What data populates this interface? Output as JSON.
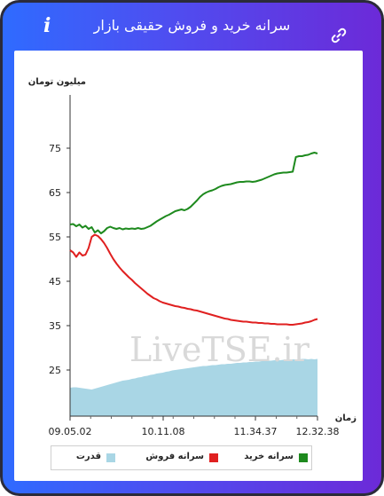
{
  "header": {
    "title": "سرانه خرید و فروش حقیقی بازار"
  },
  "chart_data": {
    "type": "line",
    "ylabel": "میلیون تومان",
    "xlabel": "زمان",
    "watermark": "LiveTSE.ir",
    "yticks": [
      25,
      35,
      45,
      55,
      65,
      75
    ],
    "ylim": [
      15,
      76
    ],
    "xticks": [
      "09.05.02",
      "10.11.08",
      "11.34.37",
      "12.32.38"
    ],
    "series": [
      {
        "name": "سرانه خرید",
        "color": "#1e8a1e",
        "values": [
          57.8,
          57.9,
          57.4,
          57.8,
          57.1,
          57.5,
          56.8,
          57.2,
          56.0,
          56.5,
          55.8,
          56.3,
          57.0,
          57.3,
          57.0,
          56.8,
          57.0,
          56.7,
          56.9,
          56.8,
          56.9,
          56.8,
          57.0,
          56.8,
          56.9,
          57.2,
          57.5,
          58.0,
          58.5,
          58.9,
          59.3,
          59.7,
          60.0,
          60.4,
          60.8,
          61.0,
          61.2,
          61.0,
          61.3,
          61.8,
          62.5,
          63.2,
          64.0,
          64.6,
          65.0,
          65.3,
          65.5,
          65.8,
          66.2,
          66.5,
          66.7,
          66.8,
          66.9,
          67.1,
          67.3,
          67.4,
          67.4,
          67.5,
          67.5,
          67.4,
          67.5,
          67.7,
          67.9,
          68.2,
          68.5,
          68.8,
          69.1,
          69.3,
          69.4,
          69.5,
          69.5,
          69.6,
          69.7,
          73.0,
          73.2,
          73.2,
          73.4,
          73.5,
          73.8,
          74.0,
          73.8
        ]
      },
      {
        "name": "سرانه فروش",
        "color": "#e02020",
        "values": [
          52.0,
          51.5,
          50.5,
          51.5,
          50.8,
          51.0,
          52.5,
          55.0,
          55.5,
          55.2,
          54.5,
          53.6,
          52.5,
          51.2,
          50.0,
          49.0,
          48.1,
          47.3,
          46.6,
          45.9,
          45.3,
          44.6,
          44.0,
          43.4,
          42.8,
          42.2,
          41.7,
          41.2,
          40.9,
          40.5,
          40.2,
          40.0,
          39.8,
          39.6,
          39.4,
          39.3,
          39.1,
          39.0,
          38.8,
          38.7,
          38.5,
          38.4,
          38.2,
          38.0,
          37.8,
          37.6,
          37.4,
          37.2,
          37.0,
          36.8,
          36.6,
          36.5,
          36.3,
          36.2,
          36.1,
          36.0,
          35.9,
          35.9,
          35.8,
          35.7,
          35.7,
          35.6,
          35.6,
          35.5,
          35.5,
          35.4,
          35.4,
          35.3,
          35.3,
          35.3,
          35.3,
          35.2,
          35.2,
          35.3,
          35.4,
          35.5,
          35.7,
          35.8,
          36.0,
          36.3,
          36.5
        ]
      },
      {
        "name": "قدرت",
        "color": "#a9d6e5",
        "values": [
          21.0,
          21.1,
          21.1,
          21.0,
          20.9,
          20.8,
          20.7,
          20.6,
          20.8,
          21.0,
          21.2,
          21.4,
          21.6,
          21.8,
          22.0,
          22.2,
          22.4,
          22.6,
          22.7,
          22.8,
          23.0,
          23.1,
          23.3,
          23.4,
          23.6,
          23.7,
          23.9,
          24.0,
          24.2,
          24.3,
          24.4,
          24.6,
          24.7,
          24.9,
          25.0,
          25.1,
          25.2,
          25.3,
          25.4,
          25.5,
          25.6,
          25.7,
          25.8,
          25.9,
          25.9,
          26.0,
          26.1,
          26.1,
          26.2,
          26.3,
          26.3,
          26.4,
          26.4,
          26.5,
          26.6,
          26.6,
          26.7,
          26.7,
          26.8,
          26.8,
          26.9,
          26.9,
          27.0,
          27.0,
          27.1,
          27.1,
          27.2,
          27.2,
          27.2,
          27.3,
          27.3,
          27.3,
          27.4,
          27.4,
          27.4,
          27.5,
          27.5,
          27.4,
          27.5,
          27.4,
          27.5
        ]
      }
    ],
    "legend_position": "bottom"
  }
}
